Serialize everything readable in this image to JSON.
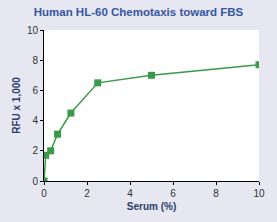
{
  "chart_data": {
    "type": "line",
    "title": "Human HL-60 Chemotaxis toward FBS",
    "x_label": "Serum (%)",
    "y_label": "RFU x 1,000",
    "x": [
      0,
      0.08,
      0.31,
      0.63,
      1.25,
      2.5,
      5,
      10
    ],
    "values": [
      0,
      1.7,
      2.0,
      3.1,
      4.5,
      6.5,
      7.0,
      7.7
    ],
    "color": "#3a9a4a",
    "marker": "square",
    "line_style": "solid",
    "xlim": [
      0,
      10
    ],
    "xticks": [
      0,
      2,
      4,
      6,
      8,
      10
    ],
    "ylim": [
      0,
      10
    ],
    "yticks": [
      0,
      2,
      4,
      6,
      8,
      10
    ],
    "grid": false
  }
}
